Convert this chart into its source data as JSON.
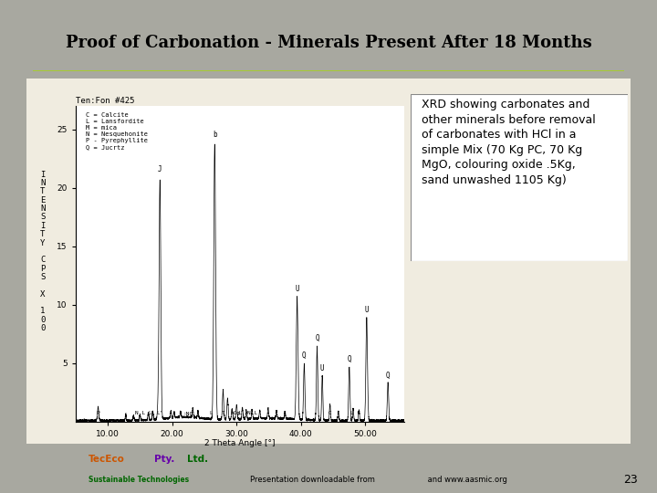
{
  "title": "Proof of Carbonation - Minerals Present After 18 Months",
  "title_bg_top": "#d4e84a",
  "title_bg_bot": "#88cc00",
  "slide_bg": "#a8a8a0",
  "inner_bg": "#f0ece0",
  "xrd_plot_bg": "#ffffff",
  "annotation_text": "XRD showing carbonates and\nother minerals before removal\nof carbonates with HCl in a\nsimple Mix (70 Kg PC, 70 Kg\nMgO, colouring oxide .5Kg,\nsand unwashed 1105 Kg)",
  "footer_text": "Presentation downloadable from                      and www.aasmic.org",
  "page_number": "23",
  "xrd_title": "Ten:Fon #425",
  "legend_text": "C = Calcite\nL = Lansfordite\nM = mica\nN = Nesquehonite\nP - Pyrephyllite\nQ = Jucrtz",
  "ylabel_chars": [
    "I",
    "N",
    "T",
    "E",
    "N",
    "S",
    "I",
    "T",
    "Y",
    "",
    "C",
    "P",
    "S",
    "",
    "X",
    "",
    "1",
    "0",
    "0"
  ],
  "xlabel_text": "2 Theta Angle [°]",
  "background_color": "#a0a098"
}
